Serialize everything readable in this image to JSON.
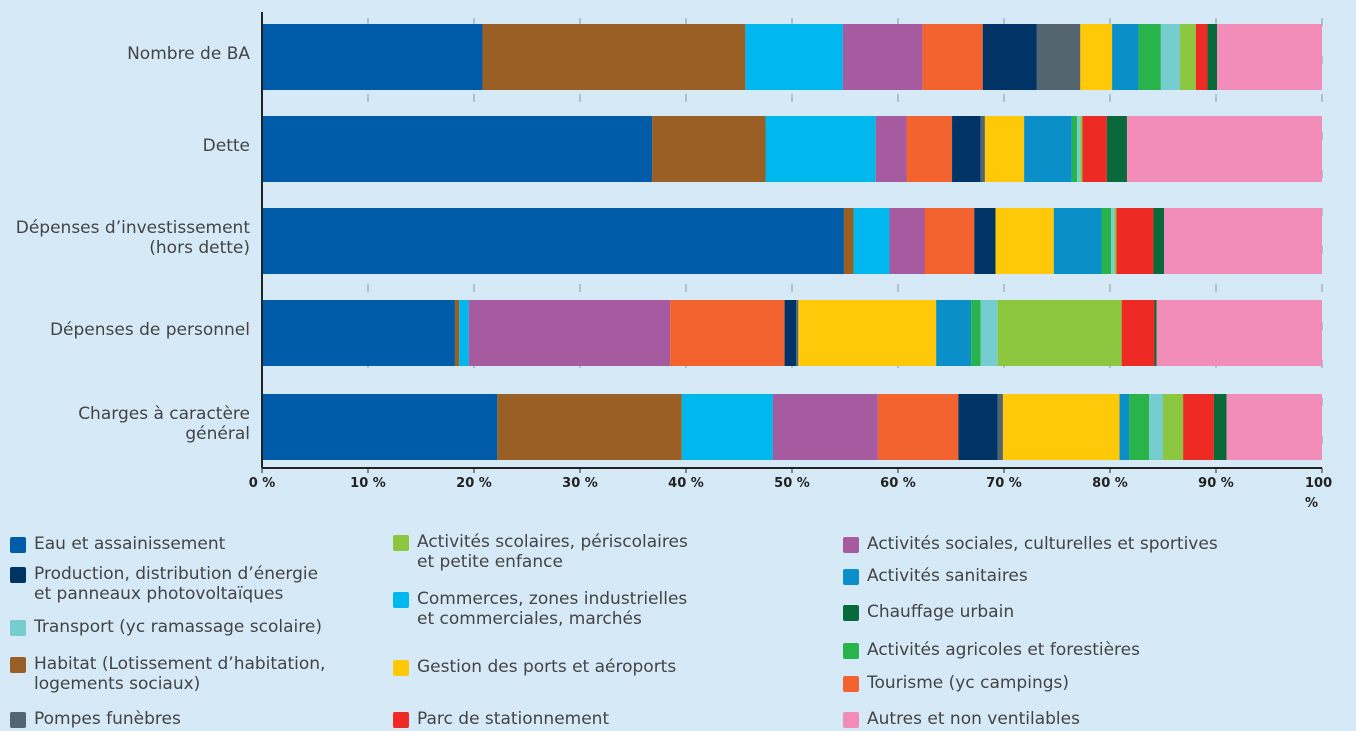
{
  "chart_data": {
    "type": "stacked_bar_horizontal",
    "categories": [
      "Nombre de  BA",
      "Dette",
      "Dépenses d’investissement\n(hors dette)",
      "Dépenses de personnel",
      "Charges à caractère\ngénéral"
    ],
    "series": [
      {
        "name": "Eau et assainissement",
        "color": "#005ba9",
        "values": [
          20.8,
          36.8,
          54.9,
          18.2,
          22.2
        ]
      },
      {
        "name": "Habitat (Lotissement d’habitation,\nlogements sociaux)",
        "color": "#9a5f24",
        "values": [
          24.8,
          10.7,
          0.9,
          0.4,
          17.4
        ]
      },
      {
        "name": "Commerces, zones industrielles\net commerciales, marchés",
        "color": "#00b7ee",
        "values": [
          9.2,
          10.4,
          3.4,
          0.9,
          8.6
        ]
      },
      {
        "name": "Activités sociales, culturelles et sportives",
        "color": "#a65aa0",
        "values": [
          7.5,
          2.9,
          3.3,
          19.0,
          9.9
        ]
      },
      {
        "name": "Tourisme (yc campings)",
        "color": "#f26330",
        "values": [
          5.7,
          4.3,
          4.7,
          10.8,
          7.6
        ]
      },
      {
        "name": "Production, distribution d’énergie\net panneaux photovoltaïques",
        "color": "#003366",
        "values": [
          5.1,
          2.7,
          2.0,
          1.1,
          3.7
        ]
      },
      {
        "name": "Pompes funèbres",
        "color": "#556570",
        "values": [
          4.1,
          0.4,
          0.0,
          0.2,
          0.5
        ]
      },
      {
        "name": "Gestion des ports et aéroports",
        "color": "#ffc90a",
        "values": [
          3.0,
          3.7,
          5.5,
          13.0,
          11.0
        ]
      },
      {
        "name": "Activités sanitaires",
        "color": "#0a8fc8",
        "values": [
          2.5,
          4.5,
          4.5,
          3.3,
          0.9
        ]
      },
      {
        "name": "Activités agricoles et forestières",
        "color": "#28b34b",
        "values": [
          2.1,
          0.5,
          0.9,
          0.9,
          1.9
        ]
      },
      {
        "name": "Transport (yc ramassage scolaire)",
        "color": "#76cdd0",
        "values": [
          1.8,
          0.3,
          0.3,
          1.6,
          1.3
        ]
      },
      {
        "name": "Activités scolaires, périscolaires\net petite enfance",
        "color": "#8dc63f",
        "values": [
          1.5,
          0.2,
          0.2,
          11.7,
          1.9
        ]
      },
      {
        "name": "Parc de stationnement",
        "color": "#ee2a24",
        "values": [
          1.1,
          2.3,
          3.5,
          3.1,
          2.9
        ]
      },
      {
        "name": "Chauffage urbain",
        "color": "#08693a",
        "values": [
          0.9,
          1.9,
          1.0,
          0.2,
          1.2
        ]
      },
      {
        "name": "Autres et non ventilables",
        "color": "#f28cb9",
        "values": [
          9.9,
          18.4,
          14.9,
          15.6,
          9.0
        ]
      }
    ],
    "xlim": [
      0,
      100
    ],
    "xticks": [
      {
        "value": 0,
        "label": "0 %"
      },
      {
        "value": 10,
        "label": "10 %"
      },
      {
        "value": 20,
        "label": "20 %"
      },
      {
        "value": 30,
        "label": "30 %"
      },
      {
        "value": 40,
        "label": "40 %"
      },
      {
        "value": 50,
        "label": "50 %"
      },
      {
        "value": 60,
        "label": "60 %"
      },
      {
        "value": 70,
        "label": "70 %"
      },
      {
        "value": 80,
        "label": "80 %"
      },
      {
        "value": 90,
        "label": "90 %"
      },
      {
        "value": 100,
        "label": "100 %"
      }
    ],
    "grid": true
  }
}
